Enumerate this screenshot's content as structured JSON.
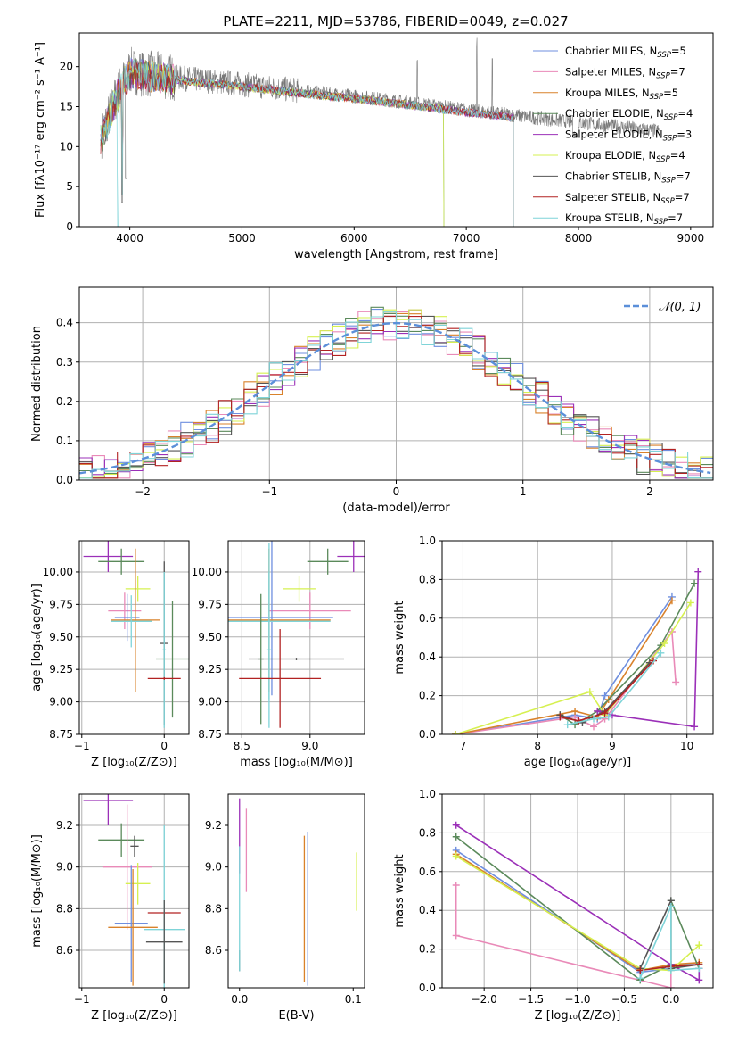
{
  "title": "PLATE=2211, MJD=53786, FIBERID=0049, z=0.027",
  "series_colors": [
    "#6f8fdf",
    "#e98ab8",
    "#d9822b",
    "#5b8a5b",
    "#9b30b8",
    "#d6f050",
    "#555555",
    "#b22222",
    "#7fd4d8"
  ],
  "chart_data": [
    {
      "id": "spectrum",
      "type": "line",
      "xlabel": "wavelength [Angstrom, rest frame]",
      "ylabel": "Flux [fλ10⁻¹⁷ erg cm⁻² s⁻¹ A⁻¹]",
      "xlim": [
        3550,
        9200
      ],
      "ylim": [
        0,
        24.2
      ],
      "xticks": [
        "4000",
        "5000",
        "6000",
        "7000",
        "8000",
        "9000"
      ],
      "yticks": [
        "0",
        "5",
        "10",
        "15",
        "20"
      ],
      "grid": false,
      "legend_position": "top-right",
      "legend": [
        {
          "name": "Chabrier MILES",
          "nssp": "5"
        },
        {
          "name": "Salpeter MILES",
          "nssp": "7"
        },
        {
          "name": "Kroupa MILES",
          "nssp": "5"
        },
        {
          "name": "Chabrier ELODIE",
          "nssp": "4"
        },
        {
          "name": "Salpeter ELODIE",
          "nssp": "3"
        },
        {
          "name": "Kroupa ELODIE",
          "nssp": "4"
        },
        {
          "name": "Chabrier STELIB",
          "nssp": "7"
        },
        {
          "name": "Salpeter STELIB",
          "nssp": "7"
        },
        {
          "name": "Kroupa STELIB",
          "nssp": "7"
        }
      ],
      "continuum": {
        "x": [
          3750,
          3900,
          4000,
          4200,
          4500,
          5000,
          5500,
          6000,
          6500,
          7000,
          7500,
          8000,
          8500,
          9000,
          9200
        ],
        "y": [
          11.5,
          17,
          19.5,
          19,
          18.5,
          17.8,
          17,
          16.3,
          15.5,
          14.6,
          13.8,
          13,
          12.3,
          11.5,
          11.2
        ]
      }
    },
    {
      "id": "residuals",
      "type": "line",
      "xlabel": "(data-model)/error",
      "ylabel": "Normed distribution",
      "xlim": [
        -2.5,
        2.5
      ],
      "ylim": [
        0,
        0.49
      ],
      "xticks": [
        "−2",
        "−1",
        "0",
        "1",
        "2"
      ],
      "yticks": [
        "0.0",
        "0.1",
        "0.2",
        "0.3",
        "0.4"
      ],
      "grid": true,
      "legend_position": "top-right",
      "legend": [
        "𝒩(0, 1)"
      ]
    },
    {
      "id": "age-vs-Z",
      "type": "scatter",
      "xlabel": "Z [log₁₀(Z/Z⊙)]",
      "ylabel": "age  [log₁₀(age/yr)]",
      "xlim": [
        -1.03,
        0.3
      ],
      "ylim": [
        8.75,
        10.24
      ],
      "xticks": [
        "−1",
        "0"
      ],
      "yticks": [
        "8.75",
        "9.00",
        "9.25",
        "9.50",
        "9.75",
        "10.00"
      ],
      "grid": true,
      "points": [
        {
          "s": 4,
          "x": -0.68,
          "xerr": 0.3,
          "y": 10.12,
          "yerr": 0.12
        },
        {
          "s": 3,
          "x": -0.52,
          "xerr": 0.28,
          "y": 10.08,
          "yerr": 0.1
        },
        {
          "s": 5,
          "x": -0.32,
          "xerr": 0.15,
          "y": 9.87,
          "yerr": 0.1
        },
        {
          "s": 1,
          "x": -0.48,
          "xerr": 0.2,
          "y": 9.7,
          "yerr": 0.14
        },
        {
          "s": 0,
          "x": -0.45,
          "xerr": 0.15,
          "y": 9.65,
          "yerr": 0.18
        },
        {
          "s": 2,
          "x": -0.35,
          "xerr": 0.3,
          "y": 9.63,
          "yerr": 0.55
        },
        {
          "s": 8,
          "x": -0.4,
          "xerr": 0.25,
          "y": 9.62,
          "yerr": 0.2
        },
        {
          "s": 6,
          "x": 0.0,
          "xerr": 0.05,
          "y": 9.45,
          "yerr": 0.63
        },
        {
          "s": 3,
          "x": 0.1,
          "xerr": 0.2,
          "y": 9.33,
          "yerr": 0.45
        },
        {
          "s": 8,
          "x": 0.0,
          "xerr": 0.02,
          "y": 9.4,
          "yerr": 0.6
        },
        {
          "s": 7,
          "x": 0.0,
          "xerr": 0.2,
          "y": 9.18,
          "yerr": 0.01
        }
      ]
    },
    {
      "id": "age-vs-mass",
      "type": "scatter",
      "xlabel": "mass [log₁₀(M/M⊙)]",
      "ylabel": "",
      "xlim": [
        8.4,
        9.4
      ],
      "ylim": [
        8.75,
        10.24
      ],
      "xticks": [
        "8.5",
        "9.0"
      ],
      "yticks": [
        "8.75",
        "9.00",
        "9.25",
        "9.50",
        "9.75",
        "10.00"
      ],
      "grid": true,
      "points": [
        {
          "s": 4,
          "x": 9.32,
          "xerr": 0.12,
          "y": 10.12,
          "yerr": 0.12
        },
        {
          "s": 3,
          "x": 9.13,
          "xerr": 0.15,
          "y": 10.08,
          "yerr": 0.1
        },
        {
          "s": 5,
          "x": 8.92,
          "xerr": 0.12,
          "y": 9.87,
          "yerr": 0.1
        },
        {
          "s": 1,
          "x": 9.0,
          "xerr": 0.3,
          "y": 9.7,
          "yerr": 0.14
        },
        {
          "s": 0,
          "x": 8.72,
          "xerr": 0.45,
          "y": 9.65,
          "yerr": 0.6
        },
        {
          "s": 2,
          "x": 8.7,
          "xerr": 0.45,
          "y": 9.63,
          "yerr": 0.55
        },
        {
          "s": 8,
          "x": 8.7,
          "xerr": 0.45,
          "y": 9.62,
          "yerr": 0.6
        },
        {
          "s": 3,
          "x": 8.64,
          "xerr": 0.02,
          "y": 9.33,
          "yerr": 0.5
        },
        {
          "s": 6,
          "x": 8.9,
          "xerr": 0.35,
          "y": 9.33,
          "yerr": 0.01
        },
        {
          "s": 8,
          "x": 8.7,
          "xerr": 0.02,
          "y": 9.4,
          "yerr": 0.6
        },
        {
          "s": 7,
          "x": 8.78,
          "xerr": 0.3,
          "y": 9.18,
          "yerr": 0.38
        }
      ]
    },
    {
      "id": "weight-vs-age",
      "type": "line",
      "xlabel": "age  [log₁₀(age/yr)]",
      "ylabel": "mass weight",
      "xlim": [
        6.72,
        10.35
      ],
      "ylim": [
        0,
        1.0
      ],
      "xticks": [
        "7",
        "8",
        "9",
        "10"
      ],
      "yticks": [
        "0.0",
        "0.2",
        "0.4",
        "0.6",
        "0.8",
        "1.0"
      ],
      "grid": true,
      "series": [
        {
          "s": 0,
          "x": [
            6.9,
            8.5,
            8.8,
            8.9,
            9.8
          ],
          "y": [
            0.0,
            0.1,
            0.08,
            0.2,
            0.71
          ]
        },
        {
          "s": 1,
          "x": [
            6.9,
            8.5,
            8.75,
            8.9,
            9.8,
            9.85
          ],
          "y": [
            0.0,
            0.09,
            0.04,
            0.08,
            0.53,
            0.27
          ]
        },
        {
          "s": 2,
          "x": [
            6.9,
            8.5,
            8.8,
            8.95,
            9.8
          ],
          "y": [
            0.0,
            0.12,
            0.09,
            0.18,
            0.69
          ]
        },
        {
          "s": 3,
          "x": [
            8.3,
            8.5,
            8.8,
            9.65,
            10.1
          ],
          "y": [
            0.1,
            0.05,
            0.12,
            0.46,
            0.78
          ]
        },
        {
          "s": 4,
          "x": [
            8.8,
            9.0,
            10.1,
            10.15
          ],
          "y": [
            0.12,
            0.1,
            0.04,
            0.84
          ]
        },
        {
          "s": 5,
          "x": [
            6.9,
            8.7,
            8.9,
            9.7,
            10.05
          ],
          "y": [
            0.0,
            0.22,
            0.1,
            0.47,
            0.68
          ]
        },
        {
          "s": 6,
          "x": [
            8.3,
            8.6,
            8.9,
            9.5
          ],
          "y": [
            0.1,
            0.06,
            0.12,
            0.37
          ]
        },
        {
          "s": 7,
          "x": [
            8.3,
            8.55,
            8.9,
            9.55
          ],
          "y": [
            0.09,
            0.07,
            0.11,
            0.38
          ]
        },
        {
          "s": 8,
          "x": [
            8.4,
            8.75,
            8.95,
            9.65
          ],
          "y": [
            0.05,
            0.08,
            0.09,
            0.42
          ]
        }
      ]
    },
    {
      "id": "mass-vs-Z",
      "type": "scatter",
      "xlabel": "Z [log₁₀(Z/Z⊙)]",
      "ylabel": "mass [log₁₀(M/M⊙)]",
      "xlim": [
        -1.03,
        0.3
      ],
      "ylim": [
        8.42,
        9.35
      ],
      "xticks": [
        "−1",
        "0"
      ],
      "yticks": [
        "8.6",
        "8.8",
        "9.0",
        "9.2"
      ],
      "grid": true,
      "points": [
        {
          "s": 4,
          "x": -0.68,
          "xerr": 0.3,
          "y": 9.32,
          "yerr": 0.12
        },
        {
          "s": 3,
          "x": -0.52,
          "xerr": 0.28,
          "y": 9.13,
          "yerr": 0.08
        },
        {
          "s": 6,
          "x": -0.36,
          "xerr": 0.05,
          "y": 9.1,
          "yerr": 0.05
        },
        {
          "s": 1,
          "x": -0.45,
          "xerr": 0.3,
          "y": 9.0,
          "yerr": 0.3
        },
        {
          "s": 5,
          "x": -0.32,
          "xerr": 0.15,
          "y": 8.92,
          "yerr": 0.1
        },
        {
          "s": 0,
          "x": -0.4,
          "xerr": 0.2,
          "y": 8.73,
          "yerr": 0.28
        },
        {
          "s": 2,
          "x": -0.38,
          "xerr": 0.3,
          "y": 8.71,
          "yerr": 0.28
        },
        {
          "s": 7,
          "x": 0.0,
          "xerr": 0.2,
          "y": 8.78,
          "yerr": 0.01
        },
        {
          "s": 8,
          "x": 0.0,
          "xerr": 0.25,
          "y": 8.7,
          "yerr": 0.5
        },
        {
          "s": 6,
          "x": 0.0,
          "xerr": 0.22,
          "y": 8.64,
          "yerr": 0.2
        }
      ]
    },
    {
      "id": "mass-vs-EBV",
      "type": "scatter",
      "xlabel": "E(B-V)",
      "ylabel": "",
      "xlim": [
        -0.01,
        0.11
      ],
      "ylim": [
        8.42,
        9.35
      ],
      "xticks": [
        "0.0",
        "0.1"
      ],
      "yticks": [
        "8.6",
        "8.8",
        "9.0",
        "9.2"
      ],
      "grid": false,
      "points": [
        {
          "s": 4,
          "x": 0.0,
          "xerr": 0,
          "y": 9.15,
          "yerr": 0.18
        },
        {
          "s": 1,
          "x": 0.006,
          "xerr": 0,
          "y": 9.08,
          "yerr": 0.2
        },
        {
          "s": 6,
          "x": 0.0,
          "xerr": 0,
          "y": 8.55,
          "yerr": 0.05
        },
        {
          "s": 8,
          "x": 0.0,
          "xerr": 0,
          "y": 8.8,
          "yerr": 0.3
        },
        {
          "s": 2,
          "x": 0.057,
          "xerr": 0,
          "y": 8.8,
          "yerr": 0.35
        },
        {
          "s": 0,
          "x": 0.06,
          "xerr": 0,
          "y": 8.8,
          "yerr": 0.37
        },
        {
          "s": 5,
          "x": 0.103,
          "xerr": 0,
          "y": 8.93,
          "yerr": 0.14
        }
      ]
    },
    {
      "id": "weight-vs-Z",
      "type": "line",
      "xlabel": "Z [log₁₀(Z/Z⊙)]",
      "ylabel": "mass weight",
      "xlim": [
        -2.45,
        0.45
      ],
      "ylim": [
        0,
        1.0
      ],
      "xticks": [
        "−2.0",
        "−1.5",
        "−1.0",
        "−0.5",
        "0.0"
      ],
      "yticks": [
        "0.0",
        "0.2",
        "0.4",
        "0.6",
        "0.8",
        "1.0"
      ],
      "grid": true,
      "series": [
        {
          "s": 0,
          "x": [
            -2.3,
            -0.33,
            0.0,
            0.0,
            0.3
          ],
          "y": [
            0.71,
            0.08,
            0.1,
            0.12,
            0.12
          ]
        },
        {
          "s": 1,
          "x": [
            -2.3,
            -2.3,
            0.0,
            0.0,
            0.0
          ],
          "y": [
            0.53,
            0.27,
            0.0,
            0.09,
            0.1
          ]
        },
        {
          "s": 2,
          "x": [
            -2.3,
            -0.33,
            0.0,
            0.3
          ],
          "y": [
            0.69,
            0.09,
            0.12,
            0.13
          ]
        },
        {
          "s": 3,
          "x": [
            -2.3,
            -0.33,
            0.0,
            0.0,
            0.3
          ],
          "y": [
            0.78,
            0.04,
            0.12,
            0.45,
            0.1
          ]
        },
        {
          "s": 4,
          "x": [
            -2.3,
            0.0,
            0.3,
            0.3
          ],
          "y": [
            0.84,
            0.12,
            0.04,
            0.1
          ]
        },
        {
          "s": 5,
          "x": [
            -2.3,
            -0.33,
            0.0,
            0.3
          ],
          "y": [
            0.68,
            0.1,
            0.09,
            0.22
          ]
        },
        {
          "s": 6,
          "x": [
            -0.33,
            0.0,
            0.0,
            0.3
          ],
          "y": [
            0.1,
            0.45,
            0.1,
            0.12
          ]
        },
        {
          "s": 7,
          "x": [
            -0.33,
            0.0,
            0.3
          ],
          "y": [
            0.09,
            0.11,
            0.12
          ]
        },
        {
          "s": 8,
          "x": [
            -0.33,
            0.0,
            0.0,
            0.3
          ],
          "y": [
            0.05,
            0.42,
            0.09,
            0.1
          ]
        }
      ]
    }
  ]
}
